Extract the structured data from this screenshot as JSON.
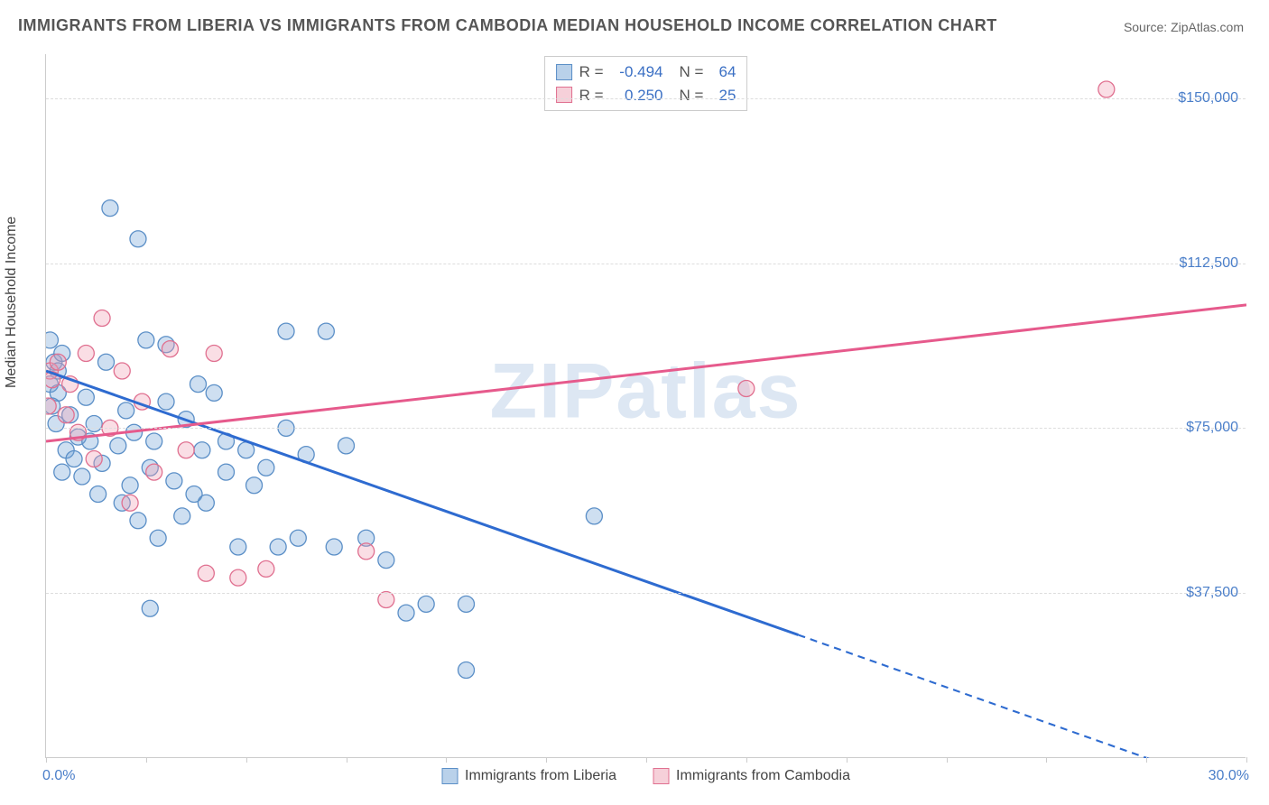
{
  "title": "IMMIGRANTS FROM LIBERIA VS IMMIGRANTS FROM CAMBODIA MEDIAN HOUSEHOLD INCOME CORRELATION CHART",
  "source": "Source: ZipAtlas.com",
  "watermark": "ZIPatlas",
  "chart": {
    "type": "scatter",
    "ylabel": "Median Household Income",
    "xlim": [
      0,
      30
    ],
    "ylim": [
      0,
      160000
    ],
    "x_tick_start_label": "0.0%",
    "x_tick_end_label": "30.0%",
    "x_minor_ticks": [
      0,
      2.5,
      5,
      7.5,
      10,
      12.5,
      15,
      17.5,
      20,
      22.5,
      25,
      27.5,
      30
    ],
    "y_gridlines": [
      37500,
      75000,
      112500,
      150000
    ],
    "y_tick_labels": [
      "$37,500",
      "$75,000",
      "$112,500",
      "$150,000"
    ],
    "background_color": "#ffffff",
    "grid_color": "#dddddd",
    "axis_color": "#cccccc",
    "tick_label_color": "#4a7ec9",
    "marker_radius": 9,
    "marker_stroke_width": 1.3,
    "series": [
      {
        "name": "Immigrants from Liberia",
        "color_fill": "rgba(115,163,214,0.35)",
        "color_stroke": "#5b8fc7",
        "trend_color": "#2e6bd0",
        "trend_width": 3,
        "trend_start": {
          "x": 0.0,
          "y": 88000
        },
        "trend_end_solid": {
          "x": 18.8,
          "y": 28000
        },
        "trend_end_dash": {
          "x": 30.0,
          "y": -8000
        },
        "r": "-0.494",
        "n": "64",
        "points": [
          {
            "x": 0.1,
            "y": 85000
          },
          {
            "x": 0.2,
            "y": 90000
          },
          {
            "x": 0.1,
            "y": 95000
          },
          {
            "x": 0.3,
            "y": 83000
          },
          {
            "x": 0.15,
            "y": 80000
          },
          {
            "x": 0.3,
            "y": 88000
          },
          {
            "x": 0.4,
            "y": 92000
          },
          {
            "x": 0.25,
            "y": 76000
          },
          {
            "x": 0.5,
            "y": 70000
          },
          {
            "x": 0.6,
            "y": 78000
          },
          {
            "x": 0.7,
            "y": 68000
          },
          {
            "x": 0.8,
            "y": 73000
          },
          {
            "x": 0.4,
            "y": 65000
          },
          {
            "x": 1.0,
            "y": 82000
          },
          {
            "x": 1.1,
            "y": 72000
          },
          {
            "x": 0.9,
            "y": 64000
          },
          {
            "x": 1.2,
            "y": 76000
          },
          {
            "x": 1.3,
            "y": 60000
          },
          {
            "x": 1.5,
            "y": 90000
          },
          {
            "x": 1.4,
            "y": 67000
          },
          {
            "x": 1.6,
            "y": 125000
          },
          {
            "x": 1.8,
            "y": 71000
          },
          {
            "x": 1.9,
            "y": 58000
          },
          {
            "x": 2.0,
            "y": 79000
          },
          {
            "x": 2.1,
            "y": 62000
          },
          {
            "x": 2.2,
            "y": 74000
          },
          {
            "x": 2.3,
            "y": 54000
          },
          {
            "x": 2.5,
            "y": 95000
          },
          {
            "x": 2.3,
            "y": 118000
          },
          {
            "x": 2.6,
            "y": 66000
          },
          {
            "x": 2.7,
            "y": 72000
          },
          {
            "x": 2.8,
            "y": 50000
          },
          {
            "x": 3.0,
            "y": 81000
          },
          {
            "x": 3.0,
            "y": 94000
          },
          {
            "x": 3.2,
            "y": 63000
          },
          {
            "x": 3.4,
            "y": 55000
          },
          {
            "x": 2.6,
            "y": 34000
          },
          {
            "x": 3.5,
            "y": 77000
          },
          {
            "x": 3.7,
            "y": 60000
          },
          {
            "x": 3.8,
            "y": 85000
          },
          {
            "x": 3.9,
            "y": 70000
          },
          {
            "x": 4.0,
            "y": 58000
          },
          {
            "x": 4.2,
            "y": 83000
          },
          {
            "x": 4.5,
            "y": 65000
          },
          {
            "x": 4.5,
            "y": 72000
          },
          {
            "x": 4.8,
            "y": 48000
          },
          {
            "x": 5.0,
            "y": 70000
          },
          {
            "x": 5.2,
            "y": 62000
          },
          {
            "x": 5.5,
            "y": 66000
          },
          {
            "x": 5.8,
            "y": 48000
          },
          {
            "x": 6.0,
            "y": 75000
          },
          {
            "x": 6.0,
            "y": 97000
          },
          {
            "x": 6.3,
            "y": 50000
          },
          {
            "x": 6.5,
            "y": 69000
          },
          {
            "x": 7.0,
            "y": 97000
          },
          {
            "x": 7.2,
            "y": 48000
          },
          {
            "x": 7.5,
            "y": 71000
          },
          {
            "x": 8.0,
            "y": 50000
          },
          {
            "x": 8.5,
            "y": 45000
          },
          {
            "x": 9.5,
            "y": 35000
          },
          {
            "x": 10.5,
            "y": 20000
          },
          {
            "x": 10.5,
            "y": 35000
          },
          {
            "x": 13.7,
            "y": 55000
          },
          {
            "x": 9.0,
            "y": 33000
          }
        ]
      },
      {
        "name": "Immigrants from Cambodia",
        "color_fill": "rgba(240,160,180,0.35)",
        "color_stroke": "#e07090",
        "trend_color": "#e65a8c",
        "trend_width": 3,
        "trend_start": {
          "x": 0.0,
          "y": 72000
        },
        "trend_end_solid": {
          "x": 30.0,
          "y": 103000
        },
        "r": "0.250",
        "n": "25",
        "points": [
          {
            "x": 0.1,
            "y": 88000
          },
          {
            "x": 0.05,
            "y": 80000
          },
          {
            "x": 0.15,
            "y": 86000
          },
          {
            "x": 0.3,
            "y": 90000
          },
          {
            "x": 0.5,
            "y": 78000
          },
          {
            "x": 0.6,
            "y": 85000
          },
          {
            "x": 0.8,
            "y": 74000
          },
          {
            "x": 1.0,
            "y": 92000
          },
          {
            "x": 1.2,
            "y": 68000
          },
          {
            "x": 1.4,
            "y": 100000
          },
          {
            "x": 1.6,
            "y": 75000
          },
          {
            "x": 1.9,
            "y": 88000
          },
          {
            "x": 2.1,
            "y": 58000
          },
          {
            "x": 2.4,
            "y": 81000
          },
          {
            "x": 2.7,
            "y": 65000
          },
          {
            "x": 3.1,
            "y": 93000
          },
          {
            "x": 3.5,
            "y": 70000
          },
          {
            "x": 4.2,
            "y": 92000
          },
          {
            "x": 4.0,
            "y": 42000
          },
          {
            "x": 4.8,
            "y": 41000
          },
          {
            "x": 5.5,
            "y": 43000
          },
          {
            "x": 8.0,
            "y": 47000
          },
          {
            "x": 8.5,
            "y": 36000
          },
          {
            "x": 17.5,
            "y": 84000
          },
          {
            "x": 26.5,
            "y": 152000
          }
        ]
      }
    ]
  },
  "legend": {
    "series1": "Immigrants from Liberia",
    "series2": "Immigrants from Cambodia"
  }
}
